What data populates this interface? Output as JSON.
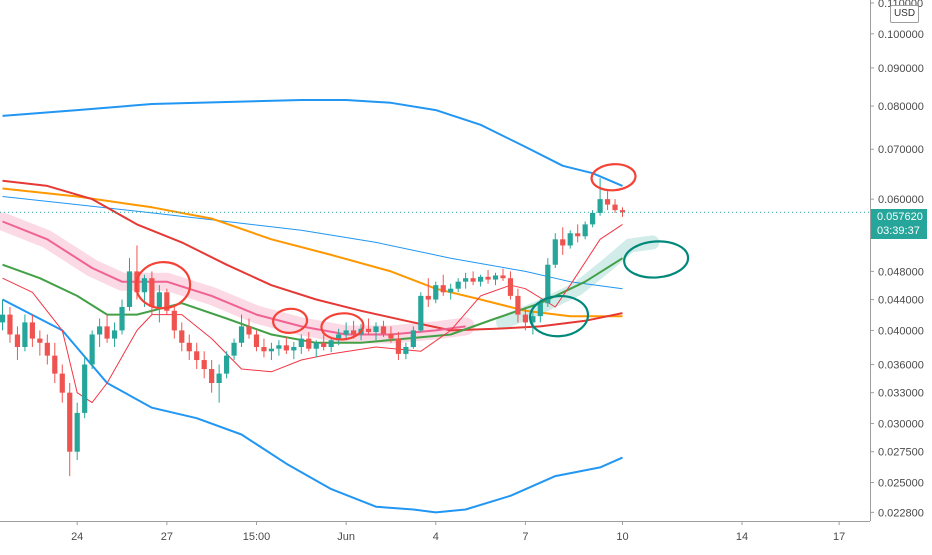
{
  "header": {
    "currency": "USD"
  },
  "price_tag": {
    "price": "0.057620",
    "countdown": "03:39:37",
    "color": "#26a69a"
  },
  "colors": {
    "up": "#26a69a",
    "down": "#ef5350",
    "bb_upper": "#2196f3",
    "bb_lower": "#2196f3",
    "ma_blue": "#2196f3",
    "ema_fast": "#f23645",
    "ema_slow": "#e53935",
    "ma_orange": "#ff9800",
    "ma_green": "#43a047",
    "ma_pink": "#f06292",
    "annotation_red": "#f44336",
    "annotation_green": "#00897b"
  },
  "chart_data": {
    "type": "candlestick",
    "y_axis": {
      "scale": "log",
      "range": [
        0.0222,
        0.111
      ],
      "ticks": [
        "0.022800",
        "0.025000",
        "0.027500",
        "0.030000",
        "0.033000",
        "0.036000",
        "0.040000",
        "0.044000",
        "0.048000",
        "0.054000",
        "0.060000",
        "0.070000",
        "0.080000",
        "0.090000",
        "0.100000",
        "0.110000"
      ]
    },
    "x_axis": {
      "ticks": [
        {
          "label": "24",
          "i": 10
        },
        {
          "label": "27",
          "i": 22
        },
        {
          "label": "15:00",
          "i": 34
        },
        {
          "label": "Jun",
          "i": 46
        },
        {
          "label": "4",
          "i": 58
        },
        {
          "label": "7",
          "i": 70
        },
        {
          "label": "10",
          "i": 83
        },
        {
          "label": "14",
          "i": 99
        },
        {
          "label": "17",
          "i": 112
        }
      ]
    },
    "last_price": 0.05762,
    "candles_ohlc": [
      [
        0.041,
        0.044,
        0.04,
        0.042
      ],
      [
        0.042,
        0.043,
        0.0385,
        0.0395
      ],
      [
        0.0395,
        0.0405,
        0.0365,
        0.038
      ],
      [
        0.038,
        0.042,
        0.0375,
        0.041
      ],
      [
        0.041,
        0.042,
        0.038,
        0.039
      ],
      [
        0.039,
        0.04,
        0.037,
        0.0385
      ],
      [
        0.0385,
        0.0395,
        0.036,
        0.037
      ],
      [
        0.037,
        0.0385,
        0.034,
        0.035
      ],
      [
        0.035,
        0.036,
        0.032,
        0.033
      ],
      [
        0.033,
        0.034,
        0.0255,
        0.0275
      ],
      [
        0.0275,
        0.032,
        0.0268,
        0.031
      ],
      [
        0.031,
        0.037,
        0.0305,
        0.036
      ],
      [
        0.036,
        0.04,
        0.0355,
        0.0395
      ],
      [
        0.0395,
        0.0415,
        0.038,
        0.0405
      ],
      [
        0.0405,
        0.042,
        0.0385,
        0.039
      ],
      [
        0.039,
        0.041,
        0.038,
        0.04
      ],
      [
        0.04,
        0.044,
        0.0395,
        0.043
      ],
      [
        0.043,
        0.05,
        0.0425,
        0.048
      ],
      [
        0.048,
        0.052,
        0.044,
        0.045
      ],
      [
        0.045,
        0.0475,
        0.043,
        0.047
      ],
      [
        0.047,
        0.048,
        0.042,
        0.043
      ],
      [
        0.043,
        0.046,
        0.041,
        0.045
      ],
      [
        0.045,
        0.0455,
        0.042,
        0.0425
      ],
      [
        0.0425,
        0.043,
        0.039,
        0.04
      ],
      [
        0.04,
        0.041,
        0.0375,
        0.0385
      ],
      [
        0.0385,
        0.0395,
        0.0365,
        0.0375
      ],
      [
        0.0375,
        0.0385,
        0.0355,
        0.0365
      ],
      [
        0.0365,
        0.0375,
        0.0345,
        0.0355
      ],
      [
        0.0355,
        0.0365,
        0.033,
        0.034
      ],
      [
        0.034,
        0.036,
        0.032,
        0.035
      ],
      [
        0.035,
        0.0375,
        0.0345,
        0.037
      ],
      [
        0.037,
        0.039,
        0.0365,
        0.0385
      ],
      [
        0.0385,
        0.042,
        0.038,
        0.0405
      ],
      [
        0.0405,
        0.0415,
        0.039,
        0.0395
      ],
      [
        0.0395,
        0.04,
        0.0375,
        0.038
      ],
      [
        0.038,
        0.039,
        0.0368,
        0.0375
      ],
      [
        0.0375,
        0.0385,
        0.0365,
        0.0378
      ],
      [
        0.0378,
        0.0388,
        0.037,
        0.0382
      ],
      [
        0.0382,
        0.0392,
        0.0372,
        0.0376
      ],
      [
        0.0376,
        0.0386,
        0.0366,
        0.038
      ],
      [
        0.038,
        0.0395,
        0.0372,
        0.039
      ],
      [
        0.039,
        0.0398,
        0.0375,
        0.0378
      ],
      [
        0.0378,
        0.0388,
        0.0368,
        0.0385
      ],
      [
        0.0385,
        0.0395,
        0.0376,
        0.038
      ],
      [
        0.038,
        0.0392,
        0.0374,
        0.0388
      ],
      [
        0.0388,
        0.0402,
        0.0382,
        0.0395
      ],
      [
        0.0395,
        0.041,
        0.0388,
        0.04
      ],
      [
        0.04,
        0.0412,
        0.039,
        0.0395
      ],
      [
        0.0395,
        0.0408,
        0.0388,
        0.0402
      ],
      [
        0.0402,
        0.0415,
        0.0395,
        0.0398
      ],
      [
        0.0398,
        0.041,
        0.0388,
        0.0405
      ],
      [
        0.0405,
        0.0412,
        0.0392,
        0.0396
      ],
      [
        0.0396,
        0.0405,
        0.0385,
        0.039
      ],
      [
        0.039,
        0.0398,
        0.0365,
        0.0372
      ],
      [
        0.0372,
        0.0385,
        0.0366,
        0.038
      ],
      [
        0.038,
        0.0405,
        0.0378,
        0.04
      ],
      [
        0.04,
        0.045,
        0.0398,
        0.0445
      ],
      [
        0.0445,
        0.047,
        0.043,
        0.044
      ],
      [
        0.044,
        0.0465,
        0.0435,
        0.046
      ],
      [
        0.046,
        0.0475,
        0.0445,
        0.045
      ],
      [
        0.045,
        0.0462,
        0.044,
        0.0455
      ],
      [
        0.0455,
        0.047,
        0.045,
        0.0465
      ],
      [
        0.0465,
        0.0478,
        0.0455,
        0.047
      ],
      [
        0.047,
        0.048,
        0.046,
        0.0465
      ],
      [
        0.0465,
        0.0475,
        0.0458,
        0.0472
      ],
      [
        0.0472,
        0.0482,
        0.0462,
        0.0468
      ],
      [
        0.0468,
        0.0478,
        0.046,
        0.0474
      ],
      [
        0.0474,
        0.0484,
        0.0466,
        0.047
      ],
      [
        0.047,
        0.048,
        0.044,
        0.0445
      ],
      [
        0.0445,
        0.0455,
        0.041,
        0.042
      ],
      [
        0.042,
        0.043,
        0.04,
        0.041
      ],
      [
        0.041,
        0.0425,
        0.0395,
        0.0418
      ],
      [
        0.0418,
        0.044,
        0.041,
        0.0435
      ],
      [
        0.0435,
        0.05,
        0.043,
        0.049
      ],
      [
        0.049,
        0.054,
        0.0485,
        0.053
      ],
      [
        0.053,
        0.055,
        0.0505,
        0.052
      ],
      [
        0.052,
        0.0545,
        0.0515,
        0.054
      ],
      [
        0.054,
        0.0555,
        0.0525,
        0.0535
      ],
      [
        0.0535,
        0.056,
        0.053,
        0.0555
      ],
      [
        0.0555,
        0.058,
        0.055,
        0.0575
      ],
      [
        0.0575,
        0.064,
        0.057,
        0.06
      ],
      [
        0.06,
        0.0615,
        0.058,
        0.059
      ],
      [
        0.059,
        0.06,
        0.0575,
        0.058
      ],
      [
        0.058,
        0.0585,
        0.0568,
        0.0576
      ]
    ],
    "indicators": [
      {
        "id": "bb_upper",
        "points": [
          [
            0,
            0.0776
          ],
          [
            10,
            0.079
          ],
          [
            20,
            0.0805
          ],
          [
            30,
            0.081
          ],
          [
            40,
            0.0815
          ],
          [
            46,
            0.0815
          ],
          [
            52,
            0.0808
          ],
          [
            58,
            0.079
          ],
          [
            64,
            0.0755
          ],
          [
            70,
            0.0705
          ],
          [
            75,
            0.0665
          ],
          [
            79,
            0.065
          ],
          [
            83,
            0.0625
          ]
        ]
      },
      {
        "id": "bb_lower",
        "points": [
          [
            0,
            0.044
          ],
          [
            8,
            0.04
          ],
          [
            14,
            0.034
          ],
          [
            20,
            0.0315
          ],
          [
            26,
            0.0305
          ],
          [
            32,
            0.029
          ],
          [
            38,
            0.0265
          ],
          [
            44,
            0.0245
          ],
          [
            50,
            0.0232
          ],
          [
            55,
            0.023
          ],
          [
            58,
            0.0228
          ],
          [
            62,
            0.023
          ],
          [
            68,
            0.024
          ],
          [
            74,
            0.0255
          ],
          [
            80,
            0.0262
          ],
          [
            83,
            0.027
          ]
        ]
      },
      {
        "id": "ma_blue",
        "points": [
          [
            0,
            0.0605
          ],
          [
            10,
            0.059
          ],
          [
            20,
            0.0575
          ],
          [
            30,
            0.056
          ],
          [
            40,
            0.0545
          ],
          [
            50,
            0.0525
          ],
          [
            60,
            0.05
          ],
          [
            70,
            0.048
          ],
          [
            76,
            0.0465
          ],
          [
            83,
            0.0455
          ]
        ]
      },
      {
        "id": "ma_orange",
        "points": [
          [
            0,
            0.062
          ],
          [
            10,
            0.0605
          ],
          [
            20,
            0.0585
          ],
          [
            28,
            0.0565
          ],
          [
            36,
            0.053
          ],
          [
            44,
            0.0505
          ],
          [
            52,
            0.048
          ],
          [
            58,
            0.0455
          ],
          [
            64,
            0.044
          ],
          [
            70,
            0.0425
          ],
          [
            76,
            0.0418
          ],
          [
            83,
            0.0418
          ]
        ]
      },
      {
        "id": "ema_slow",
        "points": [
          [
            0,
            0.0635
          ],
          [
            6,
            0.0625
          ],
          [
            12,
            0.06
          ],
          [
            18,
            0.0555
          ],
          [
            24,
            0.0525
          ],
          [
            30,
            0.049
          ],
          [
            36,
            0.046
          ],
          [
            42,
            0.044
          ],
          [
            48,
            0.0425
          ],
          [
            54,
            0.0412
          ],
          [
            60,
            0.04
          ],
          [
            66,
            0.0402
          ],
          [
            72,
            0.0405
          ],
          [
            78,
            0.0412
          ],
          [
            83,
            0.0422
          ]
        ]
      },
      {
        "id": "ma_pink",
        "points": [
          [
            0,
            0.056
          ],
          [
            6,
            0.053
          ],
          [
            12,
            0.0485
          ],
          [
            16,
            0.0465
          ],
          [
            22,
            0.0465
          ],
          [
            28,
            0.0445
          ],
          [
            34,
            0.042
          ],
          [
            40,
            0.0405
          ],
          [
            46,
            0.0395
          ],
          [
            52,
            0.0395
          ],
          [
            58,
            0.04
          ],
          [
            62,
            0.0405
          ]
        ]
      },
      {
        "id": "ma_green",
        "points": [
          [
            0,
            0.049
          ],
          [
            5,
            0.047
          ],
          [
            10,
            0.0445
          ],
          [
            14,
            0.042
          ],
          [
            18,
            0.042
          ],
          [
            24,
            0.0435
          ],
          [
            30,
            0.0415
          ],
          [
            36,
            0.0395
          ],
          [
            42,
            0.0385
          ],
          [
            48,
            0.0385
          ],
          [
            54,
            0.039
          ],
          [
            60,
            0.0395
          ],
          [
            66,
            0.0415
          ],
          [
            72,
            0.0435
          ],
          [
            78,
            0.0465
          ],
          [
            83,
            0.05
          ]
        ]
      },
      {
        "id": "ema_fast",
        "points": [
          [
            0,
            0.047
          ],
          [
            4,
            0.045
          ],
          [
            8,
            0.04
          ],
          [
            10,
            0.033
          ],
          [
            12,
            0.032
          ],
          [
            14,
            0.034
          ],
          [
            18,
            0.04
          ],
          [
            20,
            0.042
          ],
          [
            24,
            0.042
          ],
          [
            28,
            0.039
          ],
          [
            32,
            0.0355
          ],
          [
            36,
            0.0352
          ],
          [
            40,
            0.0365
          ],
          [
            44,
            0.0372
          ],
          [
            50,
            0.038
          ],
          [
            56,
            0.0375
          ],
          [
            60,
            0.04
          ],
          [
            64,
            0.0445
          ],
          [
            68,
            0.046
          ],
          [
            70,
            0.0455
          ],
          [
            74,
            0.043
          ],
          [
            76,
            0.046
          ],
          [
            80,
            0.053
          ],
          [
            83,
            0.0555
          ]
        ]
      }
    ],
    "annotations": [
      {
        "kind": "ellipse",
        "color": "red",
        "cx": 21.5,
        "cy": 0.046
      },
      {
        "kind": "ellipse",
        "color": "red",
        "cx": 38.5,
        "cy": 0.0412
      },
      {
        "kind": "ellipse",
        "color": "red",
        "cx": 45.5,
        "cy": 0.0405
      },
      {
        "kind": "ellipse",
        "color": "red",
        "cx": 81.8,
        "cy": 0.0642
      },
      {
        "kind": "ellipse",
        "color": "green",
        "cx": 74.5,
        "cy": 0.0418
      },
      {
        "kind": "ellipse",
        "color": "green",
        "cx": 87.5,
        "cy": 0.0498
      }
    ]
  }
}
